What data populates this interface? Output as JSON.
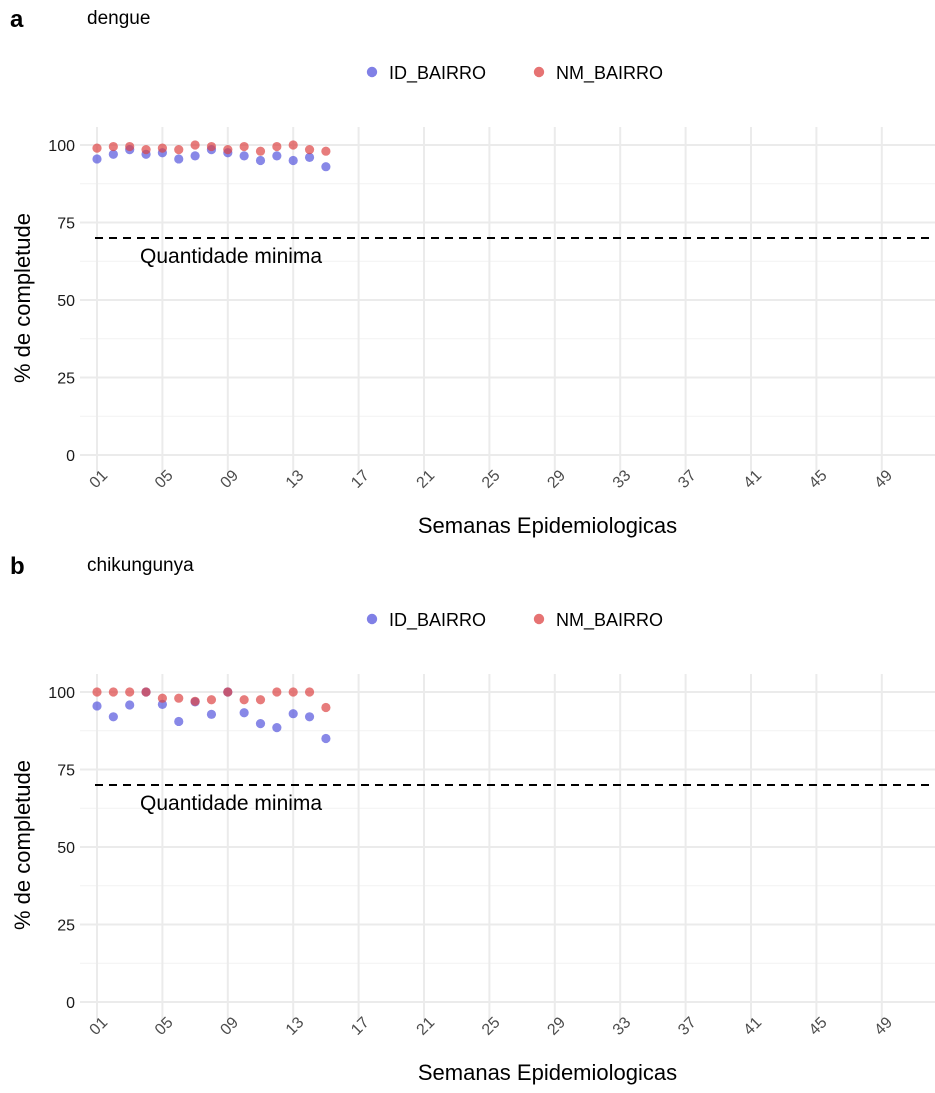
{
  "chart_data": [
    {
      "type": "scatter",
      "panel_label": "a",
      "title": "dengue",
      "xlabel": "Semanas Epidemiologicas",
      "ylabel": "% de completude",
      "x_tick_labels": [
        "01",
        "05",
        "09",
        "13",
        "17",
        "21",
        "25",
        "29",
        "33",
        "37",
        "41",
        "45",
        "49"
      ],
      "x_ticks": [
        1,
        5,
        9,
        13,
        17,
        21,
        25,
        29,
        33,
        37,
        41,
        45,
        49
      ],
      "xlim": [
        1,
        52
      ],
      "y_ticks": [
        0,
        25,
        50,
        75,
        100
      ],
      "ylim": [
        0,
        100
      ],
      "grid": true,
      "legend_position": "top",
      "reference_line": {
        "y": 70,
        "style": "dashed",
        "label": "Quantidade minima"
      },
      "series": [
        {
          "name": "ID_BAIRRO",
          "color": "#5555dd",
          "x": [
            1,
            2,
            3,
            4,
            5,
            6,
            7,
            8,
            9,
            10,
            11,
            12,
            13,
            14,
            15
          ],
          "y": [
            95.5,
            97,
            98.5,
            97,
            97.5,
            95.5,
            96.5,
            98.5,
            97.5,
            96.5,
            95,
            96.5,
            95,
            96,
            93
          ]
        },
        {
          "name": "NM_BAIRRO",
          "color": "#dd4444",
          "x": [
            1,
            2,
            3,
            4,
            5,
            6,
            7,
            8,
            9,
            10,
            11,
            12,
            13,
            14,
            15
          ],
          "y": [
            99,
            99.5,
            99.5,
            98.5,
            99,
            98.5,
            100,
            99.5,
            98.5,
            99.5,
            98,
            99.5,
            100,
            98.5,
            98
          ]
        }
      ]
    },
    {
      "type": "scatter",
      "panel_label": "b",
      "title": "chikungunya",
      "xlabel": "Semanas Epidemiologicas",
      "ylabel": "% de completude",
      "x_tick_labels": [
        "01",
        "05",
        "09",
        "13",
        "17",
        "21",
        "25",
        "29",
        "33",
        "37",
        "41",
        "45",
        "49"
      ],
      "x_ticks": [
        1,
        5,
        9,
        13,
        17,
        21,
        25,
        29,
        33,
        37,
        41,
        45,
        49
      ],
      "xlim": [
        1,
        52
      ],
      "y_ticks": [
        0,
        25,
        50,
        75,
        100
      ],
      "ylim": [
        0,
        100
      ],
      "grid": true,
      "legend_position": "top",
      "reference_line": {
        "y": 70,
        "style": "dashed",
        "label": "Quantidade minima"
      },
      "series": [
        {
          "name": "ID_BAIRRO",
          "color": "#5555dd",
          "x": [
            1,
            2,
            3,
            4,
            5,
            6,
            7,
            8,
            9,
            10,
            11,
            12,
            13,
            14,
            15
          ],
          "y": [
            95.5,
            92,
            95.8,
            100,
            96,
            90.5,
            96.8,
            92.8,
            100,
            93.3,
            89.8,
            88.5,
            93,
            92,
            85
          ]
        },
        {
          "name": "NM_BAIRRO",
          "color": "#dd4444",
          "x": [
            1,
            2,
            3,
            4,
            5,
            6,
            7,
            8,
            9,
            10,
            11,
            12,
            13,
            14,
            15
          ],
          "y": [
            100,
            100,
            100,
            100,
            98,
            98,
            97,
            97.5,
            100,
            97.5,
            97.5,
            100,
            100,
            100,
            95
          ]
        }
      ]
    }
  ]
}
